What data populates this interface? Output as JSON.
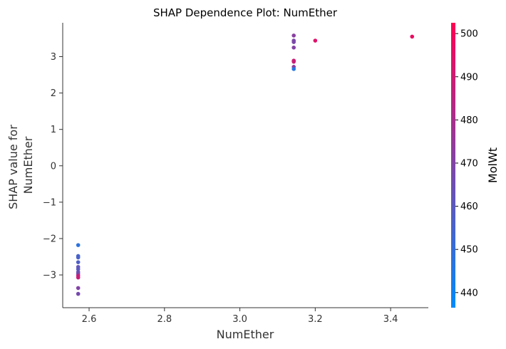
{
  "chart_data": {
    "type": "scatter",
    "title": "SHAP Dependence Plot: NumEther",
    "xlabel": "NumEther",
    "ylabel_lines": [
      "SHAP value for",
      "NumEther"
    ],
    "xlim": [
      2.53,
      3.5
    ],
    "ylim": [
      -3.9,
      3.93
    ],
    "x_ticks": [
      2.6,
      2.8,
      3.0,
      3.2,
      3.4
    ],
    "x_tick_labels": [
      "2.6",
      "2.8",
      "3.0",
      "3.2",
      "3.4"
    ],
    "y_ticks": [
      -3,
      -2,
      -1,
      0,
      1,
      2,
      3
    ],
    "y_tick_labels": [
      "−3",
      "−2",
      "−1",
      "0",
      "1",
      "2",
      "3"
    ],
    "colorbar": {
      "label": "MolWt",
      "range": [
        436.5,
        502.5
      ],
      "ticks": [
        440,
        450,
        460,
        470,
        480,
        490,
        500
      ],
      "tick_labels": [
        "440",
        "450",
        "460",
        "470",
        "480",
        "490",
        "500"
      ],
      "color_low": "#008afb",
      "color_high": "#ff0052"
    },
    "points": [
      {
        "x": 2.571,
        "y": -2.18,
        "c": 448
      },
      {
        "x": 2.571,
        "y": -2.48,
        "c": 455
      },
      {
        "x": 2.571,
        "y": -2.52,
        "c": 456
      },
      {
        "x": 2.571,
        "y": -2.65,
        "c": 457
      },
      {
        "x": 2.571,
        "y": -2.78,
        "c": 462
      },
      {
        "x": 2.571,
        "y": -2.84,
        "c": 460
      },
      {
        "x": 2.571,
        "y": -2.92,
        "c": 463
      },
      {
        "x": 2.571,
        "y": -2.97,
        "c": 466
      },
      {
        "x": 2.571,
        "y": -3.02,
        "c": 486
      },
      {
        "x": 2.571,
        "y": -3.07,
        "c": 488
      },
      {
        "x": 2.571,
        "y": -3.36,
        "c": 470
      },
      {
        "x": 2.571,
        "y": -3.52,
        "c": 467
      },
      {
        "x": 3.143,
        "y": 3.58,
        "c": 472
      },
      {
        "x": 3.143,
        "y": 3.44,
        "c": 469
      },
      {
        "x": 3.143,
        "y": 3.4,
        "c": 468
      },
      {
        "x": 3.143,
        "y": 3.25,
        "c": 471
      },
      {
        "x": 3.143,
        "y": 2.89,
        "c": 490
      },
      {
        "x": 3.143,
        "y": 2.86,
        "c": 488
      },
      {
        "x": 3.143,
        "y": 2.72,
        "c": 473
      },
      {
        "x": 3.143,
        "y": 2.66,
        "c": 446
      },
      {
        "x": 3.2,
        "y": 3.44,
        "c": 494
      },
      {
        "x": 3.457,
        "y": 3.55,
        "c": 497
      }
    ]
  }
}
